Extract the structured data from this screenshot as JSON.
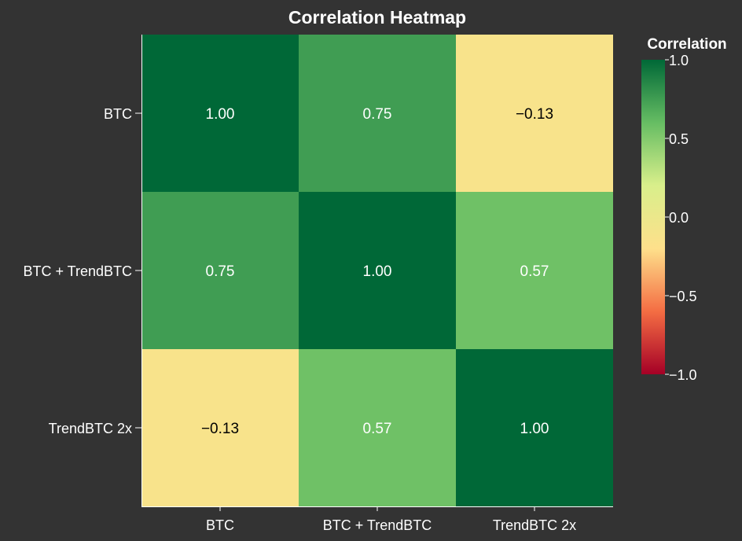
{
  "chart_data": {
    "type": "heatmap",
    "title": "Correlation Heatmap",
    "x_categories": [
      "BTC",
      "BTC + TrendBTC",
      "TrendBTC 2x"
    ],
    "y_categories": [
      "BTC",
      "BTC + TrendBTC",
      "TrendBTC 2x"
    ],
    "values": [
      [
        1.0,
        0.75,
        -0.13
      ],
      [
        0.75,
        1.0,
        0.57
      ],
      [
        -0.13,
        0.57,
        1.0
      ]
    ],
    "cell_labels": [
      [
        "1.00",
        "0.75",
        "−0.13"
      ],
      [
        "0.75",
        "1.00",
        "0.57"
      ],
      [
        "−0.13",
        "0.57",
        "1.00"
      ]
    ],
    "colorscale": {
      "title": "Correlation",
      "range": [
        -1.0,
        1.0
      ],
      "colors": [
        "#a50026",
        "#f46d43",
        "#fee08b",
        "#d9ef8b",
        "#66bd63",
        "#006837"
      ],
      "tick_values": [
        1.0,
        0.5,
        0.0,
        -0.5,
        -1.0
      ],
      "tick_labels": [
        "1.0",
        "0.5",
        "0.0",
        "−0.5",
        "−1.0"
      ]
    },
    "colors": {
      "background": "#333333",
      "text": "#ffffff",
      "dark_label": "#000000"
    },
    "legend_position": "right",
    "grid": false
  }
}
